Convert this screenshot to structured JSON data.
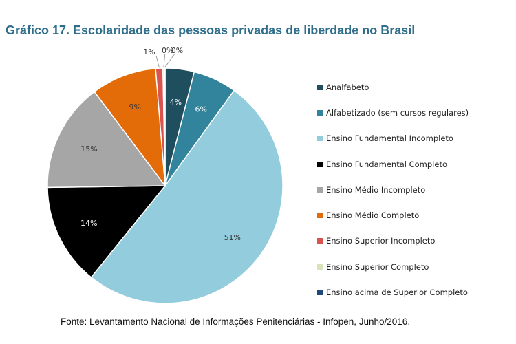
{
  "chart_data": {
    "type": "pie",
    "title": "Gráfico 17. Escolaridade das pessoas privadas de liberdade no Brasil",
    "source": "Fonte: Levantamento Nacional de Informações Penitenciárias - Infopen, Junho/2016.",
    "legend_position": "right",
    "slices": [
      {
        "label": "Analfabeto",
        "value": 4,
        "display": "4%",
        "color": "#1f4e5f"
      },
      {
        "label": "Alfabetizado (sem cursos regulares)",
        "value": 6,
        "display": "6%",
        "color": "#31849b"
      },
      {
        "label": "Ensino Fundamental Incompleto",
        "value": 51,
        "display": "51%",
        "color": "#93cddd"
      },
      {
        "label": "Ensino Fundamental Completo",
        "value": 14,
        "display": "14%",
        "color": "#000000"
      },
      {
        "label": "Ensino Médio Incompleto",
        "value": 15,
        "display": "15%",
        "color": "#a6a6a6"
      },
      {
        "label": "Ensino Médio Completo",
        "value": 9,
        "display": "9%",
        "color": "#e36c09"
      },
      {
        "label": "Ensino Superior Incompleto",
        "value": 1,
        "display": "1%",
        "color": "#d9534f"
      },
      {
        "label": "Ensino Superior Completo",
        "value": 0.2,
        "display": "0%",
        "color": "#d7e4bd"
      },
      {
        "label": "Ensino acima de Superior Completo",
        "value": 0.1,
        "display": "0%",
        "color": "#1f497d"
      }
    ]
  }
}
